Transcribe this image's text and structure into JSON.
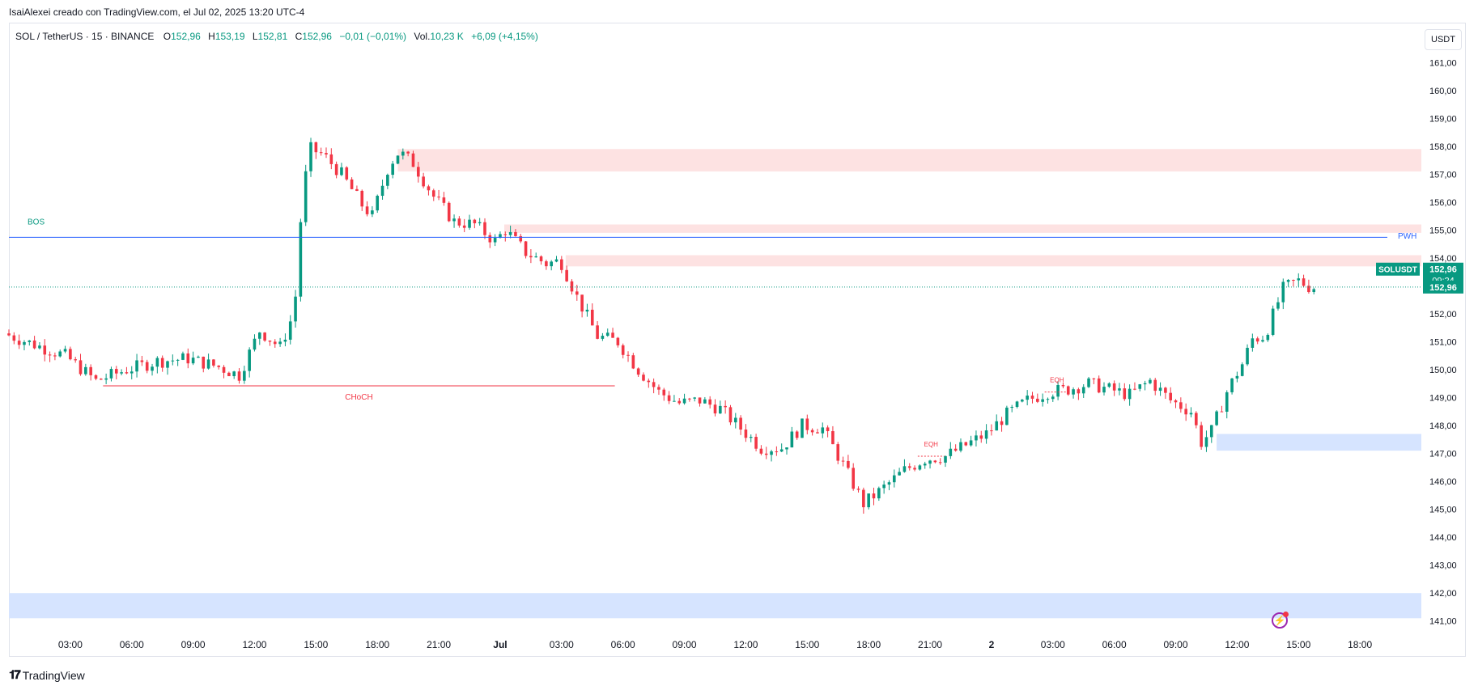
{
  "header": {
    "caption": "IsaiAlexei creado con TradingView.com, el Jul 02, 2025 13:20 UTC-4"
  },
  "legend": {
    "symbol": "SOL / TetherUS · 15 · BINANCE",
    "open_label": "O",
    "open": "152,96",
    "high_label": "H",
    "high": "153,19",
    "low_label": "L",
    "low": "152,81",
    "close_label": "C",
    "close": "152,96",
    "change": "−0,01 (−0,01%)",
    "volume_label": "Vol.",
    "volume": "10,23 K",
    "volume_change": "+6,09 (+4,15%)"
  },
  "toolbar": {
    "currency": "USDT"
  },
  "footer": {
    "brand": "TradingView"
  },
  "colors": {
    "up": "#089981",
    "down": "#f23645",
    "bos": "#2962ff",
    "choch": "#f23645",
    "supply": "#fde2e2",
    "demand": "#d6e4ff"
  },
  "chart_data": {
    "type": "candlestick",
    "symbol": "SOLUSDT",
    "interval": "15",
    "ylim": [
      140.5,
      161.5
    ],
    "y_ticks": [
      "161,00",
      "160,00",
      "159,00",
      "158,00",
      "157,00",
      "156,00",
      "155,00",
      "154,00",
      "153,00",
      "152,00",
      "151,00",
      "150,00",
      "149,00",
      "148,00",
      "147,00",
      "146,00",
      "145,00",
      "144,00",
      "143,00",
      "142,00",
      "141,00"
    ],
    "y_tick_values": [
      161,
      160,
      159,
      158,
      157,
      156,
      155,
      154,
      153,
      152,
      151,
      150,
      149,
      148,
      147,
      146,
      145,
      144,
      143,
      142,
      141
    ],
    "x_ticks": [
      "03:00",
      "06:00",
      "09:00",
      "12:00",
      "15:00",
      "18:00",
      "21:00",
      "Jul",
      "03:00",
      "06:00",
      "09:00",
      "12:00",
      "15:00",
      "18:00",
      "21:00",
      "2",
      "03:00",
      "06:00",
      "09:00",
      "12:00",
      "15:00",
      "18:00"
    ],
    "x_range_hours": [
      -3,
      66
    ],
    "x_tick_hours": [
      0,
      3,
      6,
      9,
      12,
      15,
      18,
      21,
      24,
      27,
      30,
      33,
      36,
      39,
      42,
      45,
      48,
      51,
      54,
      57,
      60,
      63
    ],
    "last_candle_hour": 60.8,
    "price_path": [
      [
        -3,
        151.3
      ],
      [
        -1.5,
        150.9
      ],
      [
        0,
        150.5
      ],
      [
        1.5,
        149.6
      ],
      [
        3,
        150.0
      ],
      [
        4.5,
        150.3
      ],
      [
        6,
        150.4
      ],
      [
        7.5,
        150.1
      ],
      [
        8.5,
        149.8
      ],
      [
        9.5,
        151.4
      ],
      [
        10.5,
        150.8
      ],
      [
        11.2,
        152.1
      ],
      [
        11.6,
        156.4
      ],
      [
        12.0,
        157.9
      ],
      [
        12.6,
        157.7
      ],
      [
        13.5,
        157.0
      ],
      [
        14.5,
        155.9
      ],
      [
        15.0,
        155.5
      ],
      [
        15.8,
        157.3
      ],
      [
        16.3,
        157.8
      ],
      [
        17,
        157.4
      ],
      [
        18,
        156.2
      ],
      [
        19,
        155.3
      ],
      [
        20,
        155.2
      ],
      [
        21,
        154.6
      ],
      [
        21.5,
        155.0
      ],
      [
        22.5,
        154.2
      ],
      [
        23.5,
        153.8
      ],
      [
        24.2,
        153.9
      ],
      [
        25,
        152.6
      ],
      [
        26,
        151.2
      ],
      [
        27,
        151.0
      ],
      [
        28,
        150.0
      ],
      [
        29,
        149.2
      ],
      [
        30,
        148.8
      ],
      [
        31,
        148.9
      ],
      [
        32,
        148.6
      ],
      [
        33,
        147.9
      ],
      [
        34,
        147.2
      ],
      [
        35,
        147.2
      ],
      [
        36,
        148.0
      ],
      [
        37,
        147.9
      ],
      [
        38,
        146.6
      ],
      [
        39,
        145.2
      ],
      [
        39.7,
        145.6
      ],
      [
        41,
        146.4
      ],
      [
        42,
        146.8
      ],
      [
        43,
        146.9
      ],
      [
        44,
        147.3
      ],
      [
        45,
        147.7
      ],
      [
        46,
        148.4
      ],
      [
        47,
        148.9
      ],
      [
        48,
        149.2
      ],
      [
        49,
        149.3
      ],
      [
        50,
        149.5
      ],
      [
        51,
        149.3
      ],
      [
        52,
        149.1
      ],
      [
        53,
        149.6
      ],
      [
        54,
        148.9
      ],
      [
        55,
        148.5
      ],
      [
        55.5,
        147.4
      ],
      [
        56,
        147.8
      ],
      [
        56.8,
        149.3
      ],
      [
        57.5,
        150.2
      ],
      [
        58,
        151.1
      ],
      [
        58.6,
        151.2
      ],
      [
        59.5,
        152.9
      ],
      [
        60.2,
        153.2
      ],
      [
        60.8,
        152.96
      ]
    ],
    "zones": [
      {
        "kind": "supply",
        "y_low": 157.1,
        "y_high": 157.9,
        "x_start_hour": 16.0
      },
      {
        "kind": "supply",
        "y_low": 154.9,
        "y_high": 155.2,
        "x_start_hour": 21.2
      },
      {
        "kind": "supply",
        "y_low": 153.7,
        "y_high": 154.1,
        "x_start_hour": 24.2
      },
      {
        "kind": "demand",
        "y_low": 147.1,
        "y_high": 147.7,
        "x_start_hour": 56.0
      },
      {
        "kind": "demand",
        "y_low": 141.1,
        "y_high": 142.0,
        "x_start_hour": -3
      }
    ],
    "lines": [
      {
        "label": "BOS",
        "price": 154.74,
        "style": "solid",
        "color": "#2962ff",
        "x_start_hour": -3
      },
      {
        "label": "CHoCH",
        "price": 149.42,
        "style": "solid",
        "color": "#f23645",
        "x_start_hour": 1.6,
        "x_end_hour": 26.6
      },
      {
        "label": "PWH",
        "price": 154.78,
        "style": "solid",
        "color": "#2962ff"
      },
      {
        "label": "EQH",
        "price": 146.9,
        "style": "dotted",
        "color": "#f23645",
        "x_start_hour": 41.4,
        "x_end_hour": 42.7
      },
      {
        "label": "EQH",
        "price": 149.2,
        "style": "dotted",
        "color": "#f23645",
        "x_start_hour": 47.6,
        "x_end_hour": 48.8
      }
    ],
    "price_labels": {
      "symbol_tag": "SOLUSDT",
      "last_price": "152,96",
      "countdown": "09:24",
      "last_price_marker": "152,96"
    }
  }
}
